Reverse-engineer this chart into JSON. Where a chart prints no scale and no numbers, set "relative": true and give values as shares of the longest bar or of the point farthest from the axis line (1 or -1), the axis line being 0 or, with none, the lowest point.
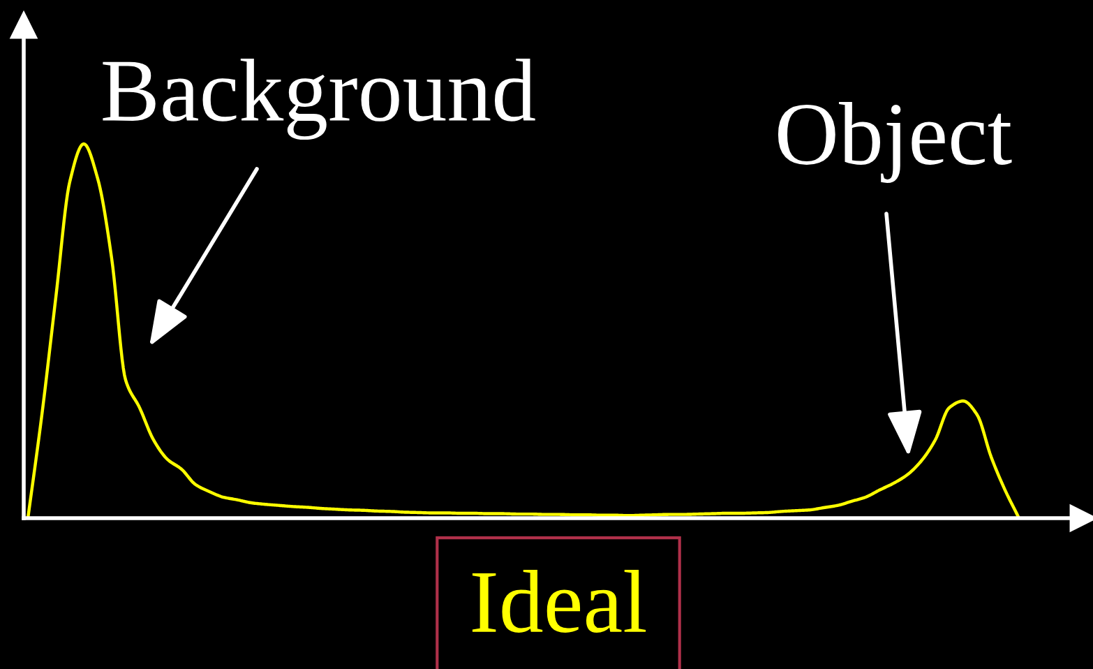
{
  "chart_data": {
    "type": "line",
    "relative": true,
    "tick_labels": false,
    "line_style": "solid",
    "categories": [
      null,
      null,
      null,
      null,
      null,
      null,
      null,
      null,
      null,
      null,
      null,
      null,
      null,
      null,
      null,
      null,
      null,
      null,
      null,
      null,
      null,
      null,
      null,
      null,
      null,
      null,
      null,
      null,
      null,
      null,
      null,
      null,
      null,
      null,
      null,
      null,
      null,
      null,
      null,
      null,
      null,
      null,
      null,
      null,
      null,
      null,
      null,
      null,
      null,
      null,
      null,
      null,
      null,
      null,
      null,
      null,
      null,
      null,
      null,
      null,
      null,
      null,
      null,
      null,
      null,
      null,
      null,
      null,
      null,
      null,
      null,
      null
    ],
    "series": [
      {
        "color": "#ffff00",
        "values": [
          0,
          0.276,
          0.59,
          0.899,
          1,
          0.907,
          0.694,
          0.369,
          0.295,
          0.209,
          0.157,
          0.131,
          0.09,
          0.071,
          0.056,
          0.049,
          0.041,
          0.037,
          0.034,
          0.031,
          0.029,
          0.026,
          0.024,
          0.022,
          0.021,
          0.019,
          0.018,
          0.016,
          0.015,
          0.014,
          0.014,
          0.013,
          0.013,
          0.012,
          0.012,
          0.011,
          0.011,
          0.01,
          0.01,
          0.009,
          0.009,
          0.008,
          0.008,
          0.007,
          0.008,
          0.009,
          0.01,
          0.01,
          0.011,
          0.012,
          0.013,
          0.013,
          0.014,
          0.015,
          0.018,
          0.02,
          0.022,
          0.028,
          0.034,
          0.045,
          0.056,
          0.075,
          0.093,
          0.116,
          0.153,
          0.209,
          0.295,
          0.313,
          0.276,
          0.164,
          0.075,
          0
        ]
      }
    ],
    "annotations": [
      "Background",
      "Object",
      "Ideal"
    ]
  }
}
